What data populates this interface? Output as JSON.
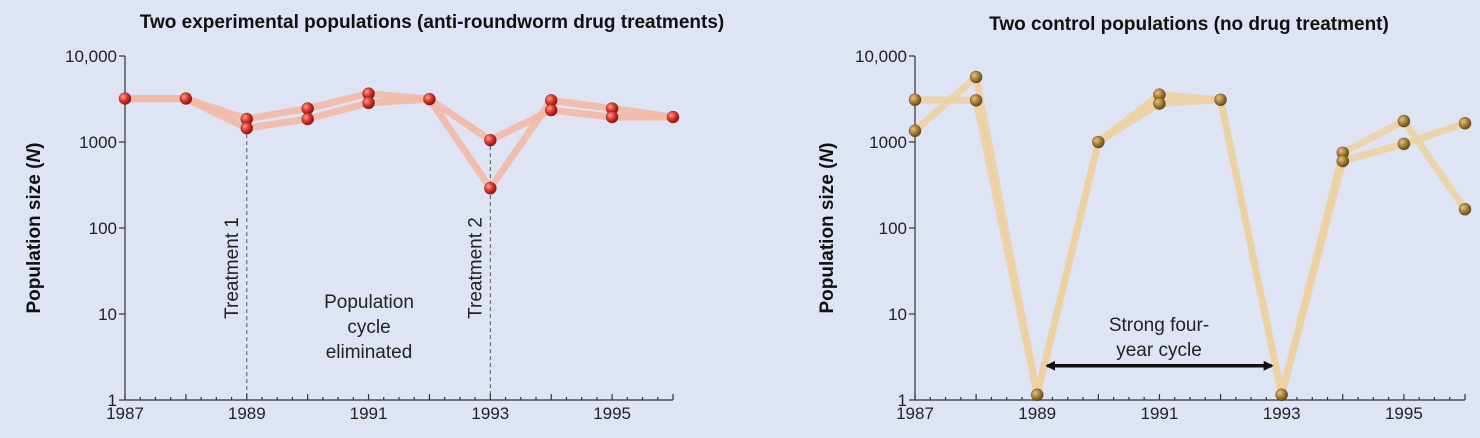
{
  "chart_data": [
    {
      "type": "line",
      "title": "Two experimental populations (anti-roundworm drug treatments)",
      "ylabel_main": "Population size (",
      "ylabel_italic": "N",
      "ylabel_end": ")",
      "xlim": [
        1987,
        1996
      ],
      "ylim": [
        1,
        10000
      ],
      "yscale": "log",
      "x_ticks": [
        1987,
        1989,
        1991,
        1993,
        1995
      ],
      "y_ticks": [
        {
          "v": 1,
          "label": "1"
        },
        {
          "v": 10,
          "label": "10"
        },
        {
          "v": 100,
          "label": "100"
        },
        {
          "v": 1000,
          "label": "1000"
        },
        {
          "v": 10000,
          "label": "10,000"
        }
      ],
      "line_color": "#f2b8a6",
      "marker_color": "#d9342b",
      "series": [
        {
          "x": [
            1987,
            1988,
            1989,
            1990,
            1991,
            1992,
            1993,
            1994,
            1995,
            1996
          ],
          "y": [
            3200,
            3200,
            1450,
            1850,
            2850,
            3150,
            1050,
            2350,
            1950,
            1950
          ]
        },
        {
          "x": [
            1987,
            1988,
            1989,
            1990,
            1991,
            1992,
            1993,
            1994,
            1995,
            1996
          ],
          "y": [
            3200,
            3200,
            1850,
            2450,
            3650,
            3150,
            290,
            3050,
            2450,
            1950
          ]
        }
      ],
      "markers": [
        {
          "x": 1987,
          "y": 3200
        },
        {
          "x": 1988,
          "y": 3200
        },
        {
          "x": 1989,
          "y": 1850
        },
        {
          "x": 1989,
          "y": 1450
        },
        {
          "x": 1990,
          "y": 2450
        },
        {
          "x": 1990,
          "y": 1850
        },
        {
          "x": 1991,
          "y": 3650
        },
        {
          "x": 1991,
          "y": 2850
        },
        {
          "x": 1992,
          "y": 3150
        },
        {
          "x": 1993,
          "y": 1050
        },
        {
          "x": 1993,
          "y": 290
        },
        {
          "x": 1994,
          "y": 3050
        },
        {
          "x": 1994,
          "y": 2350
        },
        {
          "x": 1995,
          "y": 2450
        },
        {
          "x": 1995,
          "y": 1950
        },
        {
          "x": 1996,
          "y": 1950
        }
      ],
      "annotations": {
        "treatment1": {
          "label": "Treatment 1",
          "x": 1989,
          "y": 1450
        },
        "treatment2": {
          "label": "Treatment 2",
          "x": 1993,
          "y": 1050
        },
        "cycle_note": [
          "Population",
          "cycle",
          "eliminated"
        ]
      }
    },
    {
      "type": "line",
      "title": "Two control populations (no drug treatment)",
      "ylabel_main": "Population size (",
      "ylabel_italic": "N",
      "ylabel_end": ")",
      "xlim": [
        1987,
        1996
      ],
      "ylim": [
        1,
        10000
      ],
      "yscale": "log",
      "x_ticks": [
        1987,
        1989,
        1991,
        1993,
        1995
      ],
      "y_ticks": [
        {
          "v": 1,
          "label": "1"
        },
        {
          "v": 10,
          "label": "10"
        },
        {
          "v": 100,
          "label": "100"
        },
        {
          "v": 1000,
          "label": "1000"
        },
        {
          "v": 10000,
          "label": "10,000"
        }
      ],
      "line_color": "#ecd2a2",
      "marker_color": "#a58037",
      "series": [
        {
          "x": [
            1987,
            1988,
            1989,
            1990,
            1991,
            1992,
            1993,
            1994,
            1995,
            1996
          ],
          "y": [
            3100,
            3050,
            1.15,
            1000,
            2800,
            3100,
            1.15,
            600,
            950,
            1650
          ]
        },
        {
          "x": [
            1987,
            1988,
            1989,
            1990,
            1991,
            1992,
            1993,
            1994,
            1995,
            1996
          ],
          "y": [
            1350,
            5700,
            1.15,
            1000,
            3550,
            3100,
            1.15,
            750,
            1750,
            165
          ]
        }
      ],
      "markers": [
        {
          "x": 1987,
          "y": 3100
        },
        {
          "x": 1987,
          "y": 1350
        },
        {
          "x": 1988,
          "y": 5700
        },
        {
          "x": 1988,
          "y": 3050
        },
        {
          "x": 1989,
          "y": 1.15
        },
        {
          "x": 1990,
          "y": 1000
        },
        {
          "x": 1991,
          "y": 3550
        },
        {
          "x": 1991,
          "y": 2800
        },
        {
          "x": 1992,
          "y": 3100
        },
        {
          "x": 1993,
          "y": 1.15
        },
        {
          "x": 1994,
          "y": 750
        },
        {
          "x": 1994,
          "y": 600
        },
        {
          "x": 1995,
          "y": 1750
        },
        {
          "x": 1995,
          "y": 950
        },
        {
          "x": 1996,
          "y": 1650
        },
        {
          "x": 1996,
          "y": 165
        }
      ],
      "annotations": {
        "cycle_arrow": {
          "label": [
            "Strong four-",
            "year cycle"
          ],
          "x_from": 1989,
          "x_to": 1993,
          "y": 2.5
        }
      }
    }
  ]
}
